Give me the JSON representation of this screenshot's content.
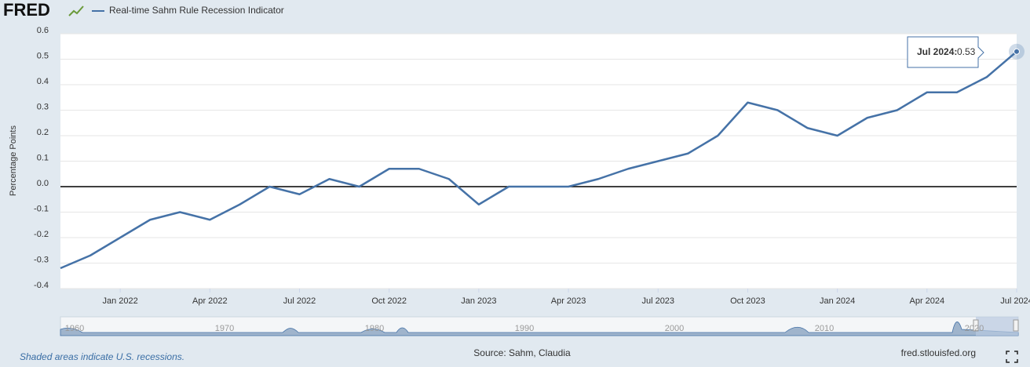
{
  "logo": "FRED",
  "chart_data": {
    "type": "line",
    "y_label": "Percentage Points",
    "x": [
      "2021-11",
      "2021-12",
      "2022-01",
      "2022-02",
      "2022-03",
      "2022-04",
      "2022-05",
      "2022-06",
      "2022-07",
      "2022-08",
      "2022-09",
      "2022-10",
      "2022-11",
      "2022-12",
      "2023-01",
      "2023-02",
      "2023-03",
      "2023-04",
      "2023-05",
      "2023-06",
      "2023-07",
      "2023-08",
      "2023-09",
      "2023-10",
      "2023-11",
      "2023-12",
      "2024-01",
      "2024-02",
      "2024-03",
      "2024-04",
      "2024-05",
      "2024-06",
      "2024-07"
    ],
    "series": [
      {
        "name": "Real-time Sahm Rule Recession Indicator",
        "color": "#4572a7",
        "values": [
          -0.32,
          -0.27,
          -0.2,
          -0.13,
          -0.1,
          -0.13,
          -0.07,
          0.0,
          -0.03,
          0.03,
          0.0,
          0.07,
          0.07,
          0.03,
          -0.07,
          0.0,
          0.0,
          0.0,
          0.03,
          0.07,
          0.1,
          0.13,
          0.2,
          0.33,
          0.3,
          0.23,
          0.2,
          0.27,
          0.3,
          0.37,
          0.37,
          0.43,
          0.53
        ]
      }
    ],
    "xlim": [
      "2021-11",
      "2024-07"
    ],
    "xticks": [
      {
        "value": "2022-01",
        "label": "Jan 2022"
      },
      {
        "value": "2022-04",
        "label": "Apr 2022"
      },
      {
        "value": "2022-07",
        "label": "Jul 2022"
      },
      {
        "value": "2022-10",
        "label": "Oct 2022"
      },
      {
        "value": "2023-01",
        "label": "Jan 2023"
      },
      {
        "value": "2023-04",
        "label": "Apr 2023"
      },
      {
        "value": "2023-07",
        "label": "Jul 2023"
      },
      {
        "value": "2023-10",
        "label": "Oct 2023"
      },
      {
        "value": "2024-01",
        "label": "Jan 2024"
      },
      {
        "value": "2024-04",
        "label": "Apr 2024"
      },
      {
        "value": "2024-07",
        "label": "Jul 2024"
      }
    ],
    "ylim": [
      -0.4,
      0.6
    ],
    "yticks": [
      -0.4,
      -0.3,
      -0.2,
      -0.1,
      {
        "value": 0,
        "label": "0.0"
      },
      0.1,
      0.2,
      0.3,
      0.4,
      0.5,
      0.6
    ],
    "grid": true,
    "zero_line": true,
    "tooltip": {
      "label": "Jul 2024:"
    }
  },
  "navigator": {
    "labels": [
      "1960",
      "1970",
      "1980",
      "1990",
      "2000",
      "2010",
      "2020"
    ]
  },
  "footer": {
    "note": "Shaded areas indicate U.S. recessions.",
    "source": "Source: Sahm, Claudia",
    "site": "fred.stlouisfed.org"
  }
}
